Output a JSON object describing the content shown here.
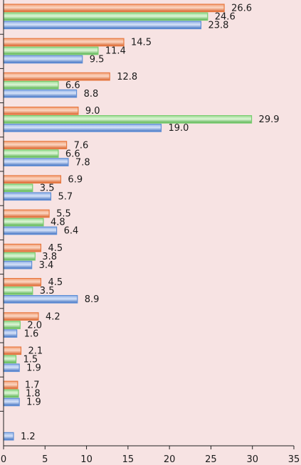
{
  "colors": {
    "background": "#f7e3e3",
    "orange": "#e8783f",
    "green": "#77cc6e",
    "blue": "#5f8fd6",
    "axis": "#222222"
  },
  "chart_data": {
    "type": "bar",
    "orientation": "horizontal",
    "categories": [
      "",
      "",
      "",
      "",
      "",
      "",
      "",
      "",
      "",
      "",
      "",
      "",
      ""
    ],
    "series": [
      {
        "values": [
          26.6,
          14.5,
          12.8,
          9.0,
          7.6,
          6.9,
          5.5,
          4.5,
          4.5,
          4.2,
          2.1,
          1.7,
          null
        ],
        "labels": [
          "26.6",
          "14.5",
          "12.8",
          "9.0",
          "7.6",
          "6.9",
          "5.5",
          "4.5",
          "4.5",
          "4.2",
          "2.1",
          "1.7",
          ""
        ],
        "color": "#e8783f"
      },
      {
        "values": [
          24.6,
          11.4,
          6.6,
          29.9,
          6.6,
          3.5,
          4.8,
          3.8,
          3.5,
          2.0,
          1.5,
          1.8,
          null
        ],
        "labels": [
          "24.6",
          "11.4",
          "6.6",
          "29.9",
          "6.6",
          "3.5",
          "4.8",
          "3.8",
          "3.5",
          "2.0",
          "1.5",
          "1.8",
          ""
        ],
        "color": "#77cc6e"
      },
      {
        "values": [
          23.8,
          9.5,
          8.8,
          19.0,
          7.8,
          5.7,
          6.4,
          3.4,
          8.9,
          1.6,
          1.9,
          1.9,
          1.2
        ],
        "labels": [
          "23.8",
          "9.5",
          "8.8",
          "19.0",
          "7.8",
          "5.7",
          "6.4",
          "3.4",
          "8.9",
          "1.6",
          "1.9",
          "1.9",
          "1.2"
        ],
        "color": "#5f8fd6"
      }
    ],
    "xlim": [
      0,
      35
    ],
    "xticks": [
      0,
      5,
      10,
      15,
      20,
      25,
      30,
      35
    ],
    "xtick_labels": [
      "0",
      "5",
      "10",
      "15",
      "20",
      "25",
      "30",
      "35"
    ],
    "grid": false,
    "legend": "none"
  }
}
